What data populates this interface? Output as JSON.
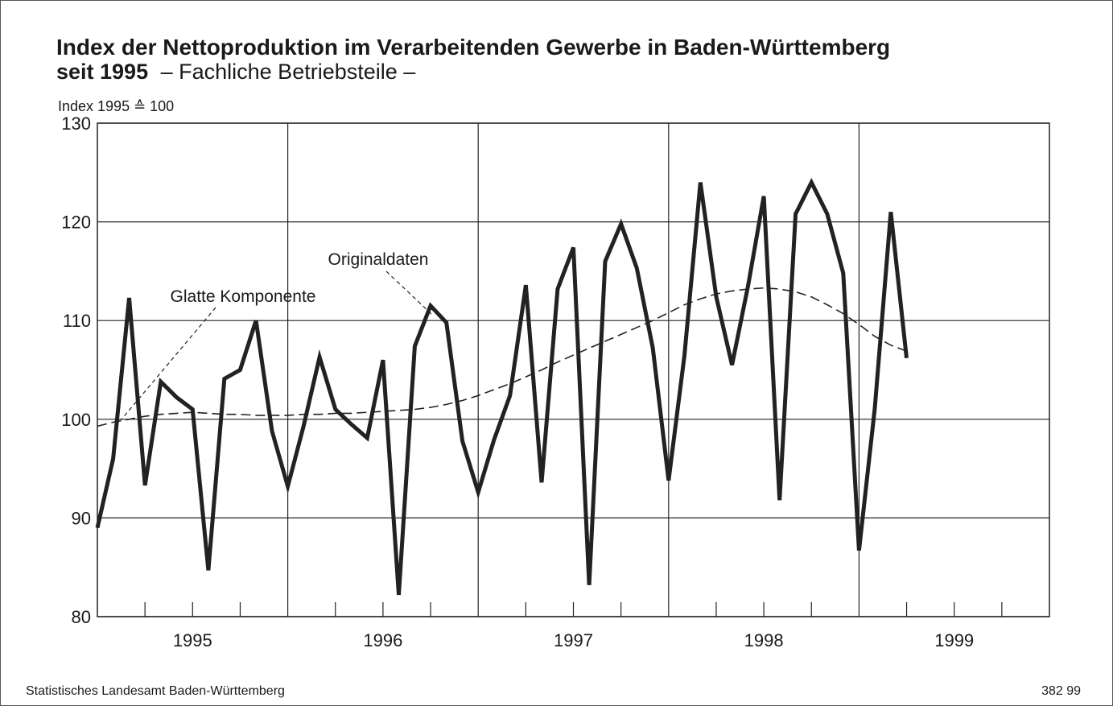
{
  "chart_data": {
    "type": "line",
    "title": "Index der Nettoproduktion im Verarbeitenden Gewerbe in Baden-Württemberg",
    "title_line2": "seit 1995",
    "subtitle": "– Fachliche Betriebsteile –",
    "y_label": "Index 1995 ≙ 100",
    "source": "Statistisches Landesamt Baden-Württemberg",
    "figure_number": "382 99",
    "x": [
      1995,
      1995.083,
      1995.167,
      1995.25,
      1995.333,
      1995.417,
      1995.5,
      1995.583,
      1995.667,
      1995.75,
      1995.833,
      1995.917,
      1996,
      1996.083,
      1996.167,
      1996.25,
      1996.333,
      1996.417,
      1996.5,
      1996.583,
      1996.667,
      1996.75,
      1996.833,
      1996.917,
      1997,
      1997.083,
      1997.167,
      1997.25,
      1997.333,
      1997.417,
      1997.5,
      1997.583,
      1997.667,
      1997.75,
      1997.833,
      1997.917,
      1998,
      1998.083,
      1998.167,
      1998.25,
      1998.333,
      1998.417,
      1998.5,
      1998.583,
      1998.667,
      1998.75,
      1998.833,
      1998.917,
      1999,
      1999.083,
      1999.167,
      1999.25
    ],
    "series": [
      {
        "name": "Originaldaten",
        "color": "#222222",
        "style": "solid",
        "values": [
          89,
          96,
          112.3,
          93.3,
          103.8,
          102.2,
          101,
          84.7,
          104.1,
          105,
          110,
          98.8,
          93.2,
          99.3,
          106.3,
          101,
          99.5,
          98.1,
          106,
          82.2,
          107.4,
          111.5,
          109.8,
          97.8,
          92.6,
          97.9,
          102.4,
          113.6,
          93.6,
          113.2,
          117.4,
          83.2,
          116,
          119.8,
          115.3,
          107.2,
          93.8,
          106.4,
          124,
          112.4,
          105.5,
          113.5,
          122.6,
          91.8,
          120.8,
          124,
          120.8,
          114.8,
          86.7,
          101.1,
          121,
          106.2
        ]
      },
      {
        "name": "Glatte Komponente",
        "color": "#222222",
        "style": "dashed",
        "values": [
          99.3,
          99.7,
          100,
          100.3,
          100.5,
          100.6,
          100.7,
          100.6,
          100.5,
          100.5,
          100.4,
          100.4,
          100.4,
          100.5,
          100.5,
          100.6,
          100.6,
          100.7,
          100.8,
          100.9,
          101,
          101.2,
          101.5,
          101.9,
          102.4,
          103,
          103.6,
          104.3,
          105,
          105.8,
          106.5,
          107.2,
          107.9,
          108.6,
          109.3,
          110,
          110.8,
          111.6,
          112.2,
          112.7,
          113,
          113.2,
          113.3,
          113.2,
          112.9,
          112.4,
          111.6,
          110.7,
          109.6,
          108.4,
          107.5,
          106.9
        ]
      }
    ],
    "xlim": [
      1995,
      2000
    ],
    "xticks": [
      {
        "value": 1995.5,
        "label": "1995"
      },
      {
        "value": 1996.5,
        "label": "1996"
      },
      {
        "value": 1997.5,
        "label": "1997"
      },
      {
        "value": 1998.5,
        "label": "1998"
      },
      {
        "value": 1999.5,
        "label": "1999"
      }
    ],
    "xgrid": [
      1996,
      1997,
      1998,
      1999
    ],
    "xminorticks": [
      1995.25,
      1995.5,
      1995.75,
      1996.25,
      1996.5,
      1996.75,
      1997.25,
      1997.5,
      1997.75,
      1998.25,
      1998.5,
      1998.75,
      1999.25,
      1999.5,
      1999.75
    ],
    "ylim": [
      80,
      130
    ],
    "yticks": [
      80,
      90,
      100,
      110,
      120,
      130
    ],
    "grid": true
  }
}
